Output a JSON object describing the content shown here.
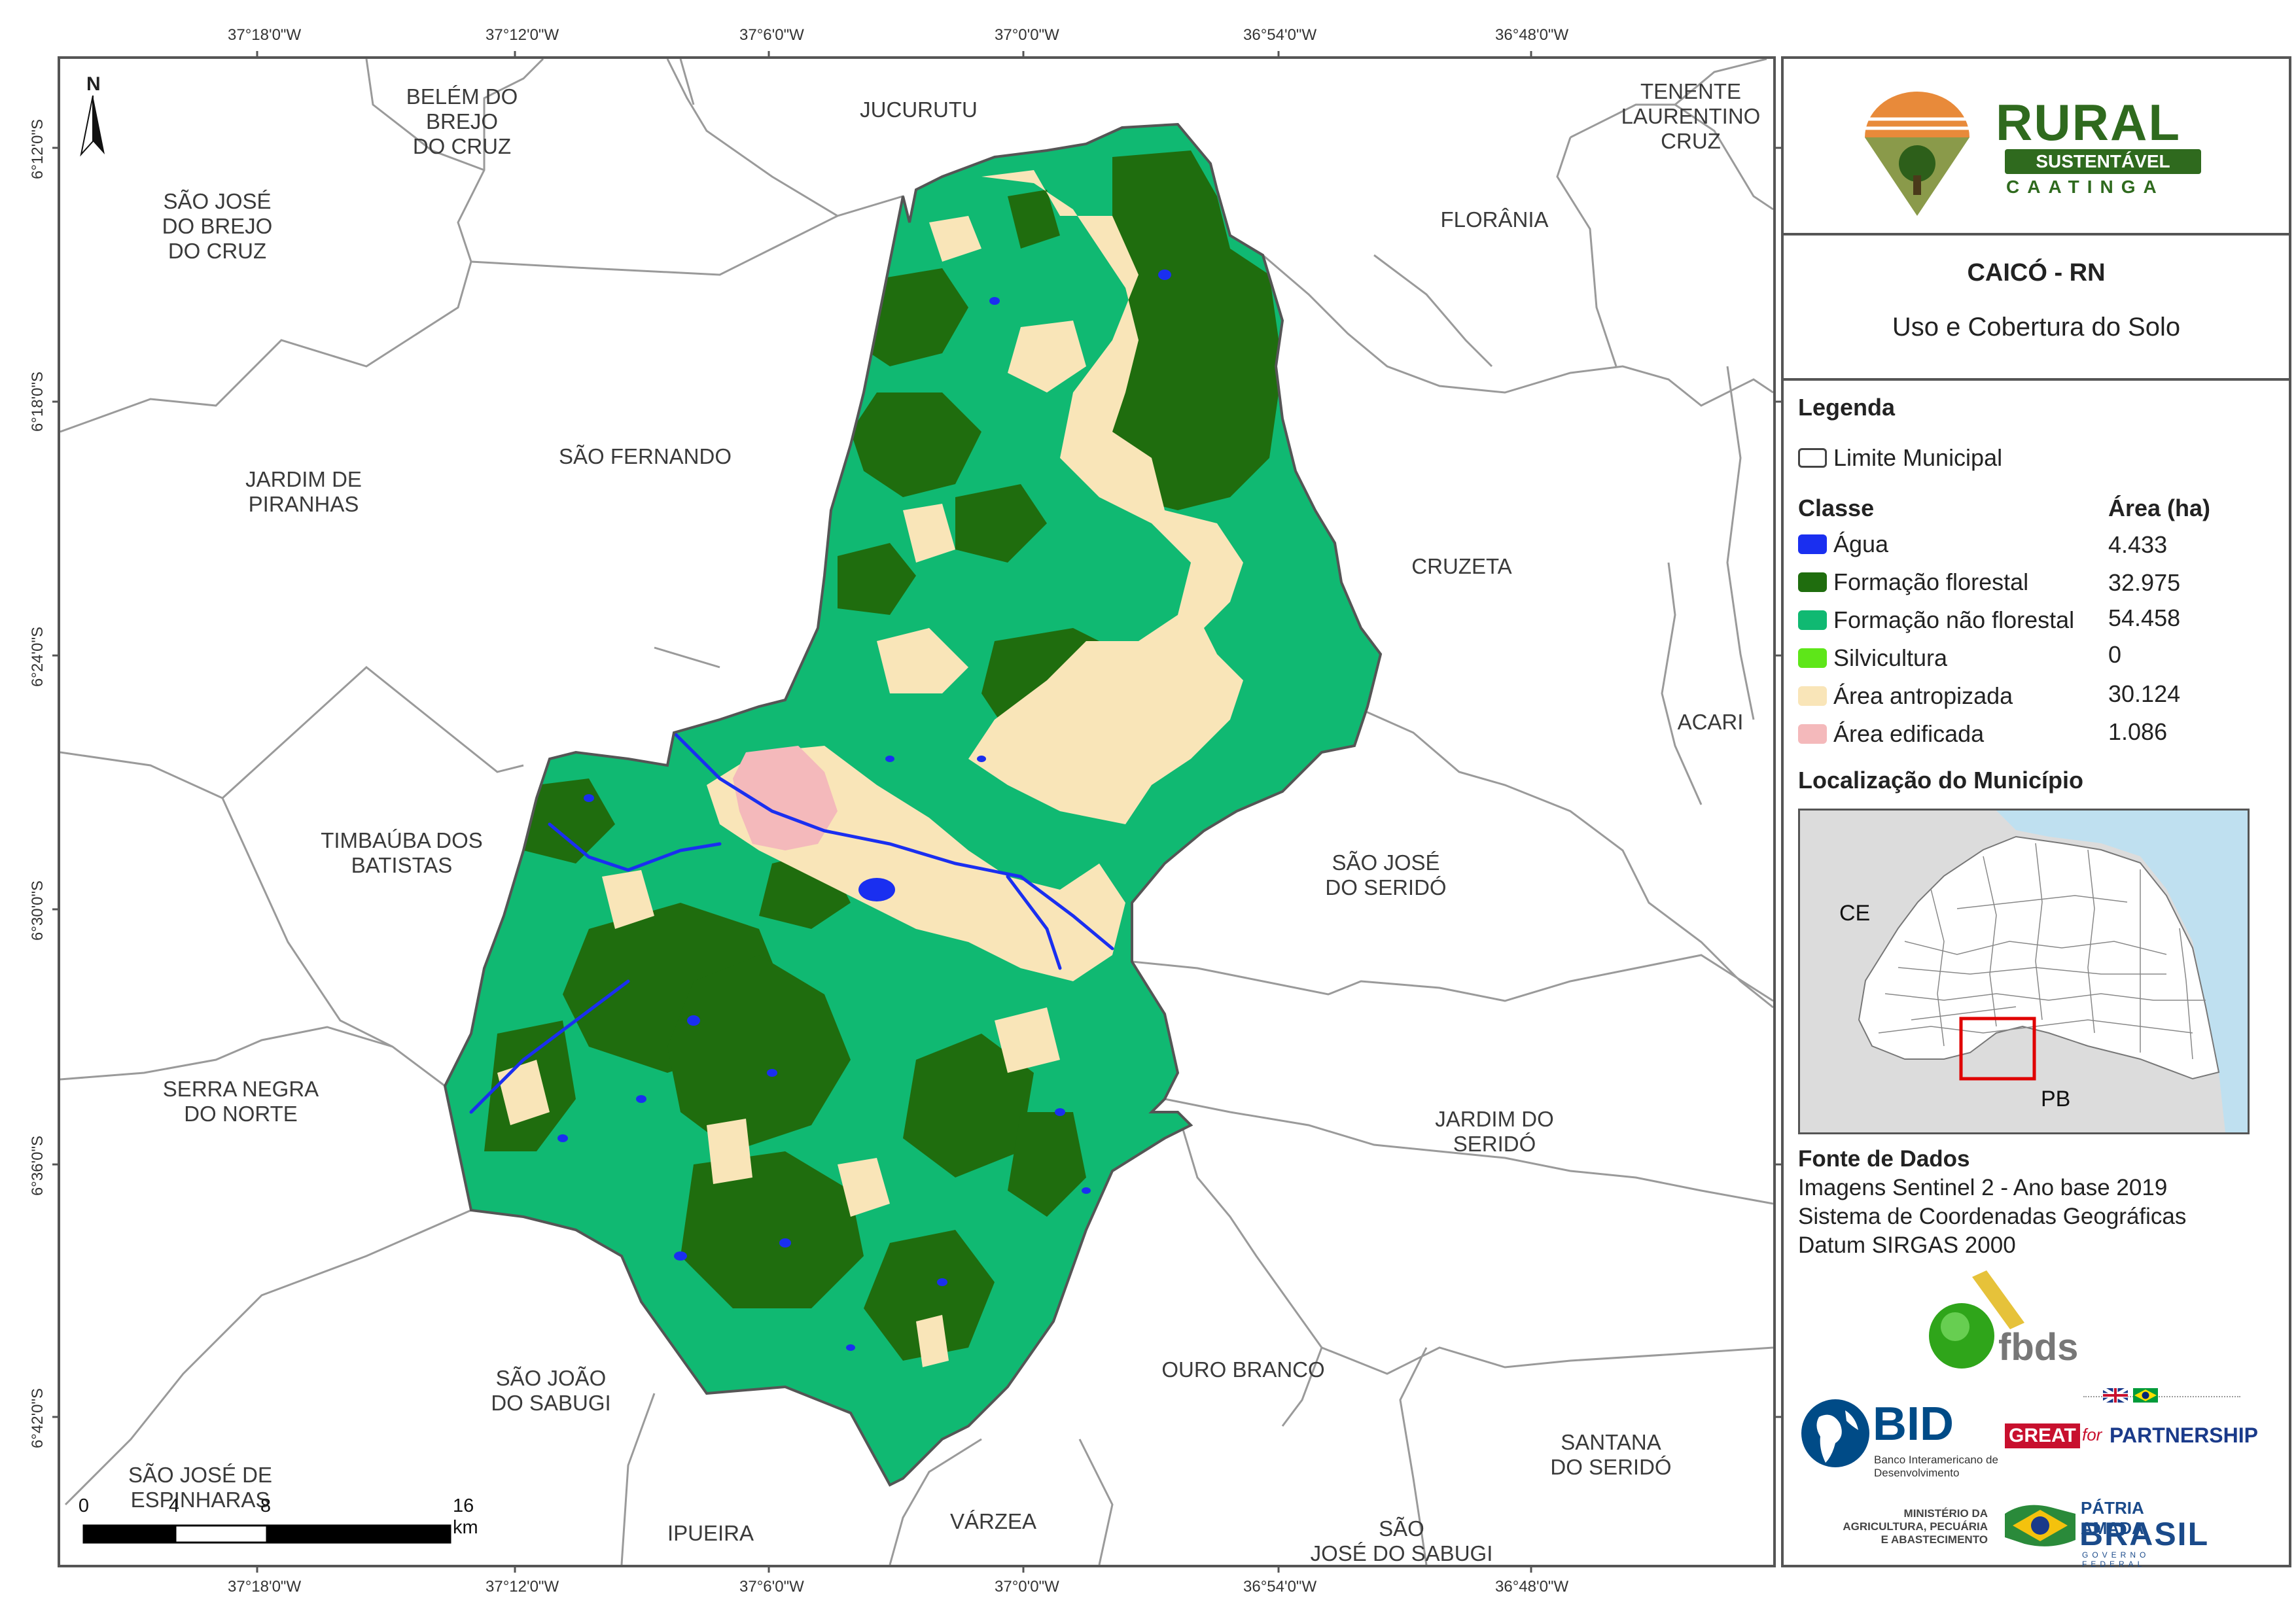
{
  "map": {
    "coords_top": [
      "37°18'0\"W",
      "37°12'0\"W",
      "37°6'0\"W",
      "37°0'0\"W",
      "36°54'0\"W",
      "36°48'0\"W"
    ],
    "coords_bottom": [
      "37°18'0\"W",
      "37°12'0\"W",
      "37°6'0\"W",
      "37°0'0\"W",
      "36°54'0\"W",
      "36°48'0\"W"
    ],
    "coords_left": [
      "6°12'0\"S",
      "6°18'0\"S",
      "6°24'0\"S",
      "6°30'0\"S",
      "6°36'0\"S",
      "6°42'0\"S"
    ],
    "north_label": "N",
    "municipalities": [
      "BELÉM DO\nBREJO\nDO CRUZ",
      "JUCURUTU",
      "TENENTE\nLAURENTINO\nCRUZ",
      "SÃO JOSÉ\nDO BREJO\nDO CRUZ",
      "FLORÂNIA",
      "SÃO FERNANDO",
      "JARDIM DE\nPIRANHAS",
      "CRUZETA",
      "ACARI",
      "TIMBAÚBA DOS\nBATISTAS",
      "SÃO JOSÉ\nDO SERIDÓ",
      "SERRA NEGRA\nDO NORTE",
      "JARDIM DO\nSERIDÓ",
      "SÃO JOÃO\nDO SABUGI",
      "OURO BRANCO",
      "SANTANA\nDO SERIDÓ",
      "SÃO JOSÉ DE\nESPINHARAS",
      "IPUEIRA",
      "VÁRZEA",
      "SÃO\nJOSÉ DO SABUGI"
    ],
    "scale": {
      "labels": [
        "0",
        "4",
        "8",
        "16 km"
      ]
    }
  },
  "panel": {
    "logo": {
      "line1": "RURAL",
      "line2": "SUSTENTÁVEL",
      "line3": "CAATINGA"
    },
    "title": "CAICÓ - RN",
    "subtitle": "Uso e Cobertura do Solo",
    "legend_title": "Legenda",
    "boundary_label": "Limite Municipal",
    "class_header": "Classe",
    "area_header": "Área (ha)",
    "classes": [
      {
        "label": "Água",
        "value": "4.433",
        "color": "#1a2ff0"
      },
      {
        "label": "Formação florestal",
        "value": "32.975",
        "color": "#1f6d0e"
      },
      {
        "label": "Formação não florestal",
        "value": "54.458",
        "color": "#10b972"
      },
      {
        "label": "Silvicultura",
        "value": "0",
        "color": "#5ee619"
      },
      {
        "label": "Área antropizada",
        "value": "30.124",
        "color": "#f9e5b8"
      },
      {
        "label": "Área edificada",
        "value": "1.086",
        "color": "#f4b9bb"
      }
    ],
    "location_title": "Localização do Município",
    "locator_labels": [
      "CE",
      "PB"
    ],
    "source_title": "Fonte de Dados",
    "source_lines": [
      "Imagens Sentinel 2 - Ano base 2019",
      "Sistema de Coordenadas Geográficas",
      "Datum SIRGAS 2000"
    ],
    "partners": {
      "fbds": "fbds",
      "bid": "BID",
      "bid_sub": "Banco Interamericano de Desenvolvimento",
      "great_a": "GREAT",
      "great_b": "for",
      "great_c": "PARTNERSHIP",
      "ministry": "MINISTÉRIO DA AGRICULTURA, PECUÁRIA E ABASTECIMENTO",
      "brasil_a": "PÁTRIA AMADA",
      "brasil_b": "BRASIL",
      "brasil_c": "GOVERNO FEDERAL"
    }
  }
}
